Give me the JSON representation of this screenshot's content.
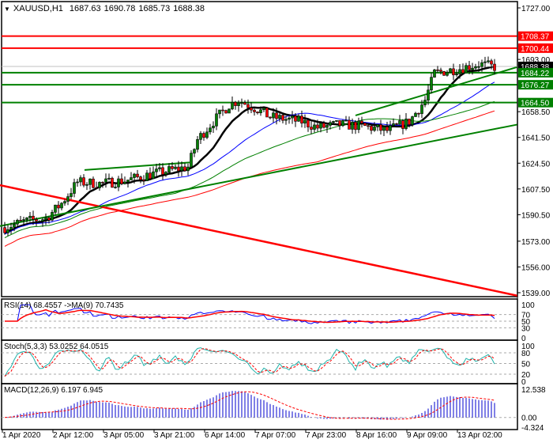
{
  "header": {
    "symbol": "XAUUSD,H1",
    "open": "1687.63",
    "high": "1690.78",
    "low": "1685.73",
    "close": "1688.38"
  },
  "price_axis": [
    "1727.00",
    "1693.00",
    "1658.50",
    "1641.50",
    "1624.50",
    "1607.50",
    "1590.50",
    "1573.00",
    "1556.00",
    "1539.00"
  ],
  "price_axis_values": [
    1727,
    1693,
    1658.5,
    1641.5,
    1624.5,
    1607.5,
    1590.5,
    1573,
    1556,
    1539
  ],
  "levels": [
    {
      "label": "1708.37",
      "value": 1708.37,
      "color": "#ff0000"
    },
    {
      "label": "1700.44",
      "value": 1700.44,
      "color": "#ff0000"
    },
    {
      "label": "1688.38",
      "value": 1688.38,
      "color": "#000000"
    },
    {
      "label": "1684.22",
      "value": 1684.22,
      "color": "#008000"
    },
    {
      "label": "1676.27",
      "value": 1676.27,
      "color": "#008000"
    },
    {
      "label": "1664.50",
      "value": 1664.5,
      "color": "#008000"
    }
  ],
  "rsi": {
    "title": "RSI(14) 68.4557  ->MA(9) 70.7435",
    "axis": [
      "100",
      "70",
      "50",
      "30",
      "0"
    ]
  },
  "stoch": {
    "title": "Stoch(5,3,3) 53.0252 64.0515",
    "axis": [
      "100",
      "80",
      "50",
      "20",
      "0"
    ]
  },
  "macd": {
    "title": "MACD(12,26,9) 6.197 6.945",
    "axis": [
      "12.538",
      "0.00",
      "-4.324"
    ]
  },
  "time_axis": [
    "1 Apr 2020",
    "2 Apr 12:00",
    "3 Apr 05:00",
    "3 Apr 21:00",
    "6 Apr 14:00",
    "7 Apr 07:00",
    "7 Apr 23:00",
    "8 Apr 16:00",
    "9 Apr 09:00",
    "13 Apr 02:00"
  ],
  "chart_data": {
    "type": "candlestick",
    "symbol": "XAUUSD",
    "timeframe": "H1",
    "ylim": [
      1539,
      1727
    ],
    "close_path": [
      [
        0,
        1582
      ],
      [
        6,
        1586
      ],
      [
        13,
        1588
      ],
      [
        18,
        1598
      ],
      [
        23,
        1612
      ],
      [
        30,
        1611
      ],
      [
        38,
        1613
      ],
      [
        48,
        1618
      ],
      [
        58,
        1622
      ],
      [
        61,
        1640
      ],
      [
        66,
        1652
      ],
      [
        71,
        1663
      ],
      [
        74,
        1666
      ],
      [
        80,
        1660
      ],
      [
        84,
        1655
      ],
      [
        94,
        1652
      ],
      [
        99,
        1648
      ],
      [
        106,
        1650
      ],
      [
        113,
        1649
      ],
      [
        121,
        1646
      ],
      [
        128,
        1652
      ],
      [
        133,
        1666
      ],
      [
        136,
        1684
      ],
      [
        144,
        1687
      ],
      [
        150,
        1690
      ],
      [
        155,
        1688
      ]
    ],
    "moving_averages": [
      {
        "color": "#000000",
        "period": 12
      },
      {
        "color": "#0000ff",
        "period": 30
      },
      {
        "color": "#008000",
        "period": 55
      },
      {
        "color": "#ff0000",
        "period": 100
      }
    ],
    "trendlines": [
      {
        "color": "#ff0000",
        "from": 1610,
        "to": 1537
      },
      {
        "color": "#008000",
        "from": 1583,
        "to": 1650
      },
      {
        "color": "#008000",
        "from": 1620,
        "to": 1625
      },
      {
        "color": "#008000",
        "from": 1656,
        "to": 1688
      }
    ],
    "rsi_levels": [
      70,
      50,
      30
    ],
    "stoch_levels": [
      80,
      50,
      20
    ]
  }
}
